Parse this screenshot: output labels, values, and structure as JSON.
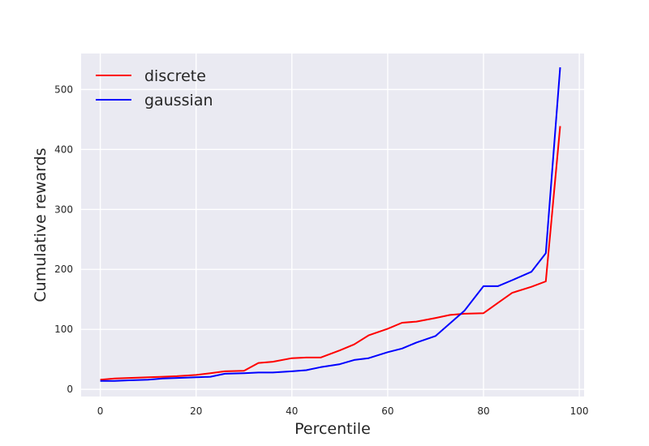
{
  "chart_data": {
    "type": "line",
    "title": "",
    "xlabel": "Percentile",
    "ylabel": "Cumulative rewards",
    "xlim": [
      -4,
      101
    ],
    "ylim": [
      -12,
      560
    ],
    "xticks": [
      0,
      20,
      40,
      60,
      80,
      100
    ],
    "yticks": [
      0,
      100,
      200,
      300,
      400,
      500
    ],
    "grid": true,
    "legend_position": "upper-left",
    "series": [
      {
        "name": "discrete",
        "color": "#ff0000",
        "x": [
          0,
          3,
          6,
          10,
          13,
          16,
          20,
          23,
          26,
          30,
          33,
          36,
          40,
          43,
          46,
          50,
          53,
          56,
          60,
          63,
          66,
          70,
          73,
          76,
          80,
          83,
          86,
          90,
          93,
          96
        ],
        "y": [
          16,
          18,
          19,
          20,
          21,
          22,
          24,
          27,
          30,
          31,
          44,
          46,
          52,
          53,
          53,
          65,
          75,
          90,
          101,
          111,
          113,
          119,
          124,
          126,
          127,
          144,
          161,
          171,
          180,
          439
        ]
      },
      {
        "name": "gaussian",
        "color": "#0000ff",
        "x": [
          0,
          3,
          6,
          10,
          13,
          16,
          20,
          23,
          26,
          30,
          33,
          36,
          40,
          43,
          46,
          50,
          53,
          56,
          60,
          63,
          66,
          70,
          73,
          76,
          80,
          83,
          86,
          90,
          93,
          96
        ],
        "y": [
          14,
          14,
          15,
          16,
          18,
          19,
          20,
          21,
          26,
          27,
          28,
          28,
          30,
          32,
          37,
          42,
          49,
          52,
          62,
          68,
          78,
          89,
          110,
          131,
          172,
          172,
          182,
          196,
          227,
          537
        ]
      }
    ]
  }
}
